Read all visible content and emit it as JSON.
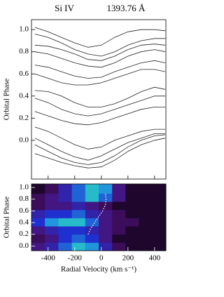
{
  "chart_data": [
    {
      "type": "line",
      "title": "Si IV",
      "subtitle": "1393.76 Å",
      "y_label": "Orbital Phase",
      "color": "#222222",
      "x": [
        -500,
        -400,
        -300,
        -200,
        -100,
        0,
        100,
        200,
        300,
        400,
        480
      ],
      "series": [
        {
          "values": [
            1.02,
            0.98,
            0.93,
            0.88,
            0.84,
            0.86,
            0.93,
            0.98,
            1.0,
            1.0,
            0.99
          ]
        },
        {
          "values": [
            0.96,
            0.93,
            0.88,
            0.82,
            0.78,
            0.76,
            0.8,
            0.86,
            0.9,
            0.92,
            0.92
          ]
        },
        {
          "values": [
            0.86,
            0.85,
            0.82,
            0.78,
            0.73,
            0.72,
            0.76,
            0.82,
            0.86,
            0.87,
            0.86
          ]
        },
        {
          "values": [
            0.8,
            0.78,
            0.74,
            0.7,
            0.67,
            0.66,
            0.7,
            0.76,
            0.8,
            0.82,
            0.8
          ]
        },
        {
          "values": [
            0.68,
            0.66,
            0.62,
            0.58,
            0.56,
            0.57,
            0.62,
            0.66,
            0.7,
            0.72,
            0.7
          ]
        },
        {
          "values": [
            0.6,
            0.56,
            0.52,
            0.5,
            0.5,
            0.52,
            0.56,
            0.6,
            0.64,
            0.64,
            0.62
          ]
        },
        {
          "values": [
            0.45,
            0.44,
            0.4,
            0.34,
            0.3,
            0.3,
            0.33,
            0.38,
            0.44,
            0.48,
            0.46
          ]
        },
        {
          "values": [
            0.38,
            0.34,
            0.28,
            0.24,
            0.22,
            0.24,
            0.28,
            0.32,
            0.36,
            0.4,
            0.4
          ]
        },
        {
          "values": [
            0.26,
            0.22,
            0.18,
            0.15,
            0.14,
            0.16,
            0.2,
            0.24,
            0.28,
            0.3,
            0.3
          ]
        },
        {
          "values": [
            0.12,
            0.08,
            0.02,
            -0.04,
            -0.08,
            -0.06,
            0.0,
            0.04,
            0.08,
            0.1,
            0.1
          ]
        },
        {
          "values": [
            0.02,
            -0.04,
            -0.1,
            -0.15,
            -0.18,
            -0.14,
            -0.08,
            -0.02,
            0.02,
            0.06,
            0.06
          ]
        },
        {
          "values": [
            -0.04,
            -0.1,
            -0.16,
            -0.2,
            -0.22,
            -0.2,
            -0.14,
            -0.06,
            0.0,
            0.04,
            0.05
          ]
        },
        {
          "values": [
            -0.12,
            -0.16,
            -0.2,
            -0.23,
            -0.25,
            -0.24,
            -0.18,
            -0.1,
            -0.04,
            0.0,
            0.02
          ]
        }
      ],
      "xlim": [
        -525,
        485
      ],
      "xticks": [
        -400,
        -200,
        0,
        200,
        400
      ],
      "ylim": [
        -0.35,
        1.09
      ],
      "yticks": [
        {
          "value": 0,
          "label": "0.0"
        },
        {
          "value": 0.2,
          "label": "0.2"
        },
        {
          "value": 0.4,
          "label": "0.4"
        },
        {
          "value": 0.6,
          "label": "0.6"
        },
        {
          "value": 0.8,
          "label": "0.8"
        },
        {
          "value": 1,
          "label": "1.0"
        }
      ]
    },
    {
      "type": "heatmap",
      "x_label": "Radial Velocity (km s⁻¹)",
      "y_label": "Orbital Phase",
      "xbins": [
        -525,
        -424,
        -323,
        -222,
        -121,
        -20,
        81,
        182,
        283,
        384,
        485
      ],
      "ybins": [
        -0.08,
        0.06,
        0.2,
        0.34,
        0.48,
        0.62,
        0.76,
        0.9,
        1.06
      ],
      "values": [
        [
          0.3,
          0.4,
          0.6,
          0.8,
          0.7,
          0.4,
          0.2,
          0.1,
          0.1,
          0.1
        ],
        [
          0.2,
          0.3,
          0.5,
          0.6,
          0.5,
          0.3,
          0.1,
          0.1,
          0.1,
          0.1
        ],
        [
          0.3,
          0.4,
          0.5,
          0.5,
          0.4,
          0.3,
          0.2,
          0.1,
          0.1,
          0.1
        ],
        [
          0.5,
          0.7,
          0.8,
          0.8,
          0.6,
          0.3,
          0.2,
          0.2,
          0.1,
          0.1
        ],
        [
          0.4,
          0.5,
          0.5,
          0.6,
          0.4,
          0.3,
          0.2,
          0.1,
          0.1,
          0.1
        ],
        [
          0.2,
          0.3,
          0.3,
          0.4,
          0.3,
          0.2,
          0.1,
          0.1,
          0.1,
          0.1
        ],
        [
          0.2,
          0.3,
          0.4,
          0.6,
          0.8,
          0.6,
          0.3,
          0.1,
          0.1,
          0.1
        ],
        [
          0.1,
          0.2,
          0.4,
          0.6,
          0.8,
          0.7,
          0.3,
          0.1,
          0.1,
          0.1
        ]
      ],
      "zlim": [
        0,
        1
      ],
      "colormap": [
        "#000000",
        "#4a1070",
        "#2030d0",
        "#20b0e0",
        "#40e070"
      ],
      "curve": {
        "color": "#ffffff",
        "x": [
          -100,
          -80,
          -50,
          -20,
          10,
          30,
          35,
          30
        ],
        "y": [
          0.2,
          0.3,
          0.4,
          0.5,
          0.6,
          0.7,
          0.8,
          0.9
        ]
      },
      "xlim": [
        -525,
        485
      ],
      "xticks": [
        -400,
        -200,
        0,
        200,
        400
      ],
      "ylim": [
        -0.08,
        1.06
      ],
      "yticks": [
        {
          "value": 0,
          "label": "0.0"
        },
        {
          "value": 0.2,
          "label": "0.2"
        },
        {
          "value": 0.4,
          "label": "0.4"
        },
        {
          "value": 0.6,
          "label": "0.6"
        },
        {
          "value": 0.8,
          "label": "0.8"
        },
        {
          "value": 1,
          "label": "1.0"
        }
      ]
    }
  ]
}
